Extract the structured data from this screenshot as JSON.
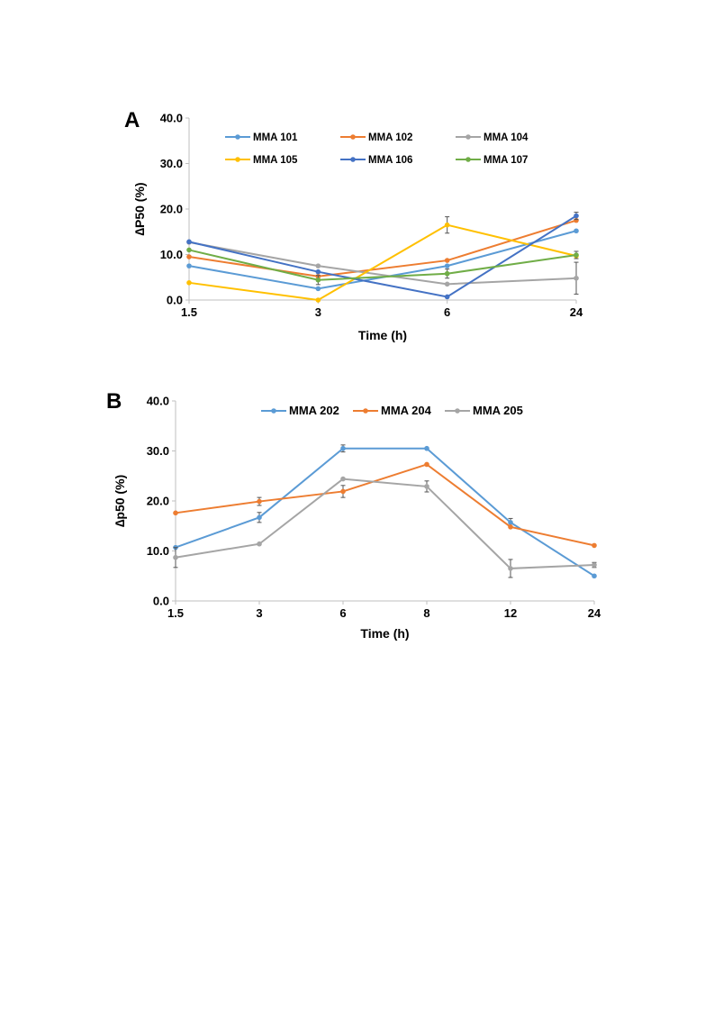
{
  "chart_data": [
    {
      "type": "line",
      "panel_label": "A",
      "categories": [
        "1.5",
        "3",
        "6",
        "24"
      ],
      "ylabel": "∆P50 (%)",
      "xlabel": "Time (h)",
      "ylim": [
        0,
        40
      ],
      "yticks": [
        "0.0",
        "10.0",
        "20.0",
        "30.0",
        "40.0"
      ],
      "grid": false,
      "legend_position": "top",
      "series": [
        {
          "name": "MMA 101",
          "color": "#5b9bd5",
          "values": [
            7.5,
            2.5,
            7.5,
            15.2
          ],
          "errors": [
            0,
            0,
            0,
            0
          ]
        },
        {
          "name": "MMA 102",
          "color": "#ed7d31",
          "values": [
            9.5,
            5.2,
            8.7,
            17.5
          ],
          "errors": [
            0,
            0,
            0,
            0
          ]
        },
        {
          "name": "MMA 104",
          "color": "#a5a5a5",
          "values": [
            12.7,
            7.5,
            3.5,
            4.8
          ],
          "errors": [
            0,
            0,
            0,
            3.5
          ]
        },
        {
          "name": "MMA 105",
          "color": "#ffc000",
          "values": [
            3.8,
            0.0,
            16.5,
            9.7
          ],
          "errors": [
            0,
            0,
            1.8,
            0
          ]
        },
        {
          "name": "MMA 106",
          "color": "#4472c4",
          "values": [
            12.8,
            6.2,
            0.7,
            18.5
          ],
          "errors": [
            0,
            0,
            0,
            0.8
          ]
        },
        {
          "name": "MMA 107",
          "color": "#70ad47",
          "values": [
            11.0,
            4.4,
            5.8,
            9.9
          ],
          "errors": [
            0,
            1.0,
            1.0,
            0.8
          ]
        }
      ]
    },
    {
      "type": "line",
      "panel_label": "B",
      "categories": [
        "1.5",
        "3",
        "6",
        "8",
        "12",
        "24"
      ],
      "ylabel": "∆p50 (%)",
      "xlabel": "Time (h)",
      "ylim": [
        0,
        40
      ],
      "yticks": [
        "0.0",
        "10.0",
        "20.0",
        "30.0",
        "40.0"
      ],
      "grid": false,
      "legend_position": "top",
      "series": [
        {
          "name": "MMA 202",
          "color": "#5b9bd5",
          "values": [
            10.7,
            16.7,
            30.5,
            30.5,
            15.7,
            5.0
          ],
          "errors": [
            0,
            1.0,
            0.7,
            0,
            0.8,
            0
          ]
        },
        {
          "name": "MMA 204",
          "color": "#ed7d31",
          "values": [
            17.6,
            19.9,
            21.9,
            27.3,
            14.8,
            11.1
          ],
          "errors": [
            0,
            0.8,
            1.2,
            0,
            0,
            0
          ]
        },
        {
          "name": "MMA 205",
          "color": "#a5a5a5",
          "values": [
            8.7,
            11.4,
            24.4,
            22.9,
            6.5,
            7.2
          ],
          "errors": [
            2.0,
            0,
            0,
            1.1,
            1.8,
            0.5
          ]
        }
      ]
    }
  ]
}
